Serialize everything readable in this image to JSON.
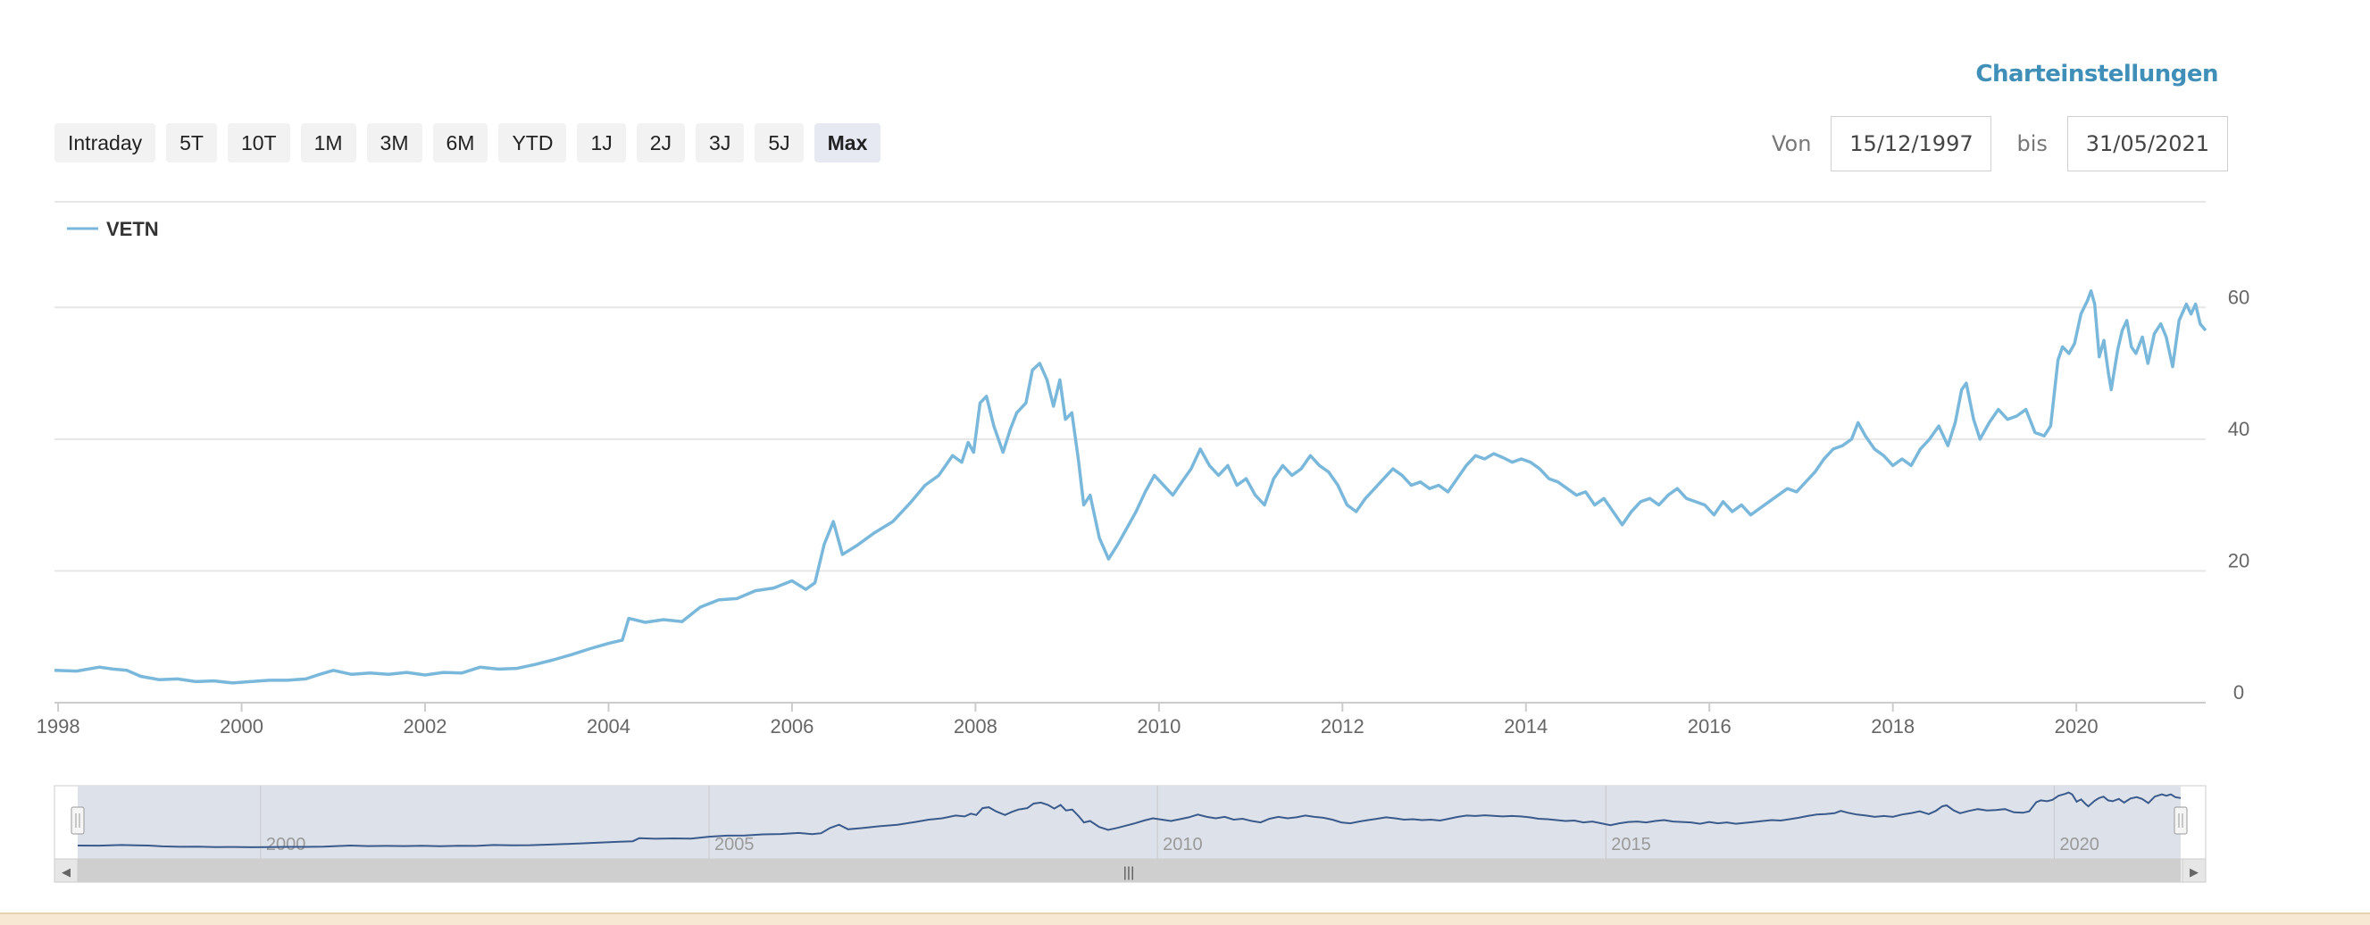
{
  "header": {
    "settings_label": "Charteinstellungen"
  },
  "range_buttons": [
    "Intraday",
    "5T",
    "10T",
    "1M",
    "3M",
    "6M",
    "YTD",
    "1J",
    "2J",
    "3J",
    "5J",
    "Max"
  ],
  "active_range": "Max",
  "date_range": {
    "from_label": "Von",
    "from_value": "15/12/1997",
    "to_label": "bis",
    "to_value": "31/05/2021"
  },
  "colors": {
    "series": "#7ab8db",
    "navigator_line": "#3a5a8c",
    "navigator_mask": "#dde2ea",
    "accent_link": "#3f8fb8"
  },
  "navigator": {
    "tick_labels": [
      "2000",
      "2005",
      "2010",
      "2015",
      "2020"
    ],
    "scrollbar_grip": "|||",
    "left_arrow": "◀",
    "right_arrow": "▶"
  },
  "chart_data": {
    "type": "line",
    "legend": {
      "name": "VETN",
      "position": "top-left"
    },
    "grid": true,
    "xlim": [
      1997.96,
      2021.41
    ],
    "ylim": [
      0,
      60
    ],
    "y_ticks": [
      0,
      20,
      40,
      60
    ],
    "x_ticks": [
      1998,
      2000,
      2002,
      2004,
      2006,
      2008,
      2010,
      2012,
      2014,
      2016,
      2018,
      2020
    ],
    "series": [
      {
        "name": "VETN",
        "points": [
          [
            1997.96,
            4.9
          ],
          [
            1998.2,
            4.8
          ],
          [
            1998.45,
            5.4
          ],
          [
            1998.6,
            5.1
          ],
          [
            1998.75,
            4.9
          ],
          [
            1998.9,
            4.0
          ],
          [
            1999.1,
            3.5
          ],
          [
            1999.3,
            3.6
          ],
          [
            1999.5,
            3.2
          ],
          [
            1999.7,
            3.3
          ],
          [
            1999.9,
            3.0
          ],
          [
            2000.1,
            3.2
          ],
          [
            2000.3,
            3.4
          ],
          [
            2000.5,
            3.4
          ],
          [
            2000.7,
            3.6
          ],
          [
            2000.85,
            4.3
          ],
          [
            2001.0,
            4.9
          ],
          [
            2001.2,
            4.3
          ],
          [
            2001.4,
            4.5
          ],
          [
            2001.6,
            4.3
          ],
          [
            2001.8,
            4.6
          ],
          [
            2002.0,
            4.2
          ],
          [
            2002.2,
            4.6
          ],
          [
            2002.4,
            4.5
          ],
          [
            2002.6,
            5.4
          ],
          [
            2002.8,
            5.1
          ],
          [
            2003.0,
            5.2
          ],
          [
            2003.2,
            5.8
          ],
          [
            2003.4,
            6.5
          ],
          [
            2003.6,
            7.3
          ],
          [
            2003.8,
            8.2
          ],
          [
            2004.0,
            9.0
          ],
          [
            2004.15,
            9.5
          ],
          [
            2004.22,
            12.8
          ],
          [
            2004.4,
            12.2
          ],
          [
            2004.6,
            12.6
          ],
          [
            2004.8,
            12.3
          ],
          [
            2005.0,
            14.5
          ],
          [
            2005.2,
            15.6
          ],
          [
            2005.4,
            15.8
          ],
          [
            2005.6,
            17.0
          ],
          [
            2005.8,
            17.4
          ],
          [
            2006.0,
            18.5
          ],
          [
            2006.15,
            17.2
          ],
          [
            2006.25,
            18.2
          ],
          [
            2006.35,
            24.0
          ],
          [
            2006.45,
            27.5
          ],
          [
            2006.55,
            22.5
          ],
          [
            2006.7,
            23.8
          ],
          [
            2006.9,
            25.8
          ],
          [
            2007.1,
            27.5
          ],
          [
            2007.3,
            30.5
          ],
          [
            2007.45,
            33.0
          ],
          [
            2007.6,
            34.5
          ],
          [
            2007.75,
            37.5
          ],
          [
            2007.85,
            36.5
          ],
          [
            2007.92,
            39.5
          ],
          [
            2007.98,
            38.0
          ],
          [
            2008.05,
            45.5
          ],
          [
            2008.12,
            46.5
          ],
          [
            2008.2,
            42.0
          ],
          [
            2008.3,
            38.0
          ],
          [
            2008.38,
            41.5
          ],
          [
            2008.45,
            44.0
          ],
          [
            2008.55,
            45.5
          ],
          [
            2008.62,
            50.5
          ],
          [
            2008.7,
            51.5
          ],
          [
            2008.78,
            49.0
          ],
          [
            2008.85,
            45.0
          ],
          [
            2008.92,
            49.0
          ],
          [
            2008.98,
            43.0
          ],
          [
            2009.05,
            44.0
          ],
          [
            2009.12,
            37.0
          ],
          [
            2009.18,
            30.0
          ],
          [
            2009.25,
            31.5
          ],
          [
            2009.35,
            25.0
          ],
          [
            2009.45,
            21.8
          ],
          [
            2009.55,
            24.0
          ],
          [
            2009.65,
            26.5
          ],
          [
            2009.75,
            29.0
          ],
          [
            2009.85,
            32.0
          ],
          [
            2009.95,
            34.5
          ],
          [
            2010.05,
            33.0
          ],
          [
            2010.15,
            31.5
          ],
          [
            2010.25,
            33.5
          ],
          [
            2010.35,
            35.5
          ],
          [
            2010.45,
            38.5
          ],
          [
            2010.55,
            36.0
          ],
          [
            2010.65,
            34.5
          ],
          [
            2010.75,
            36.0
          ],
          [
            2010.85,
            33.0
          ],
          [
            2010.95,
            34.0
          ],
          [
            2011.05,
            31.5
          ],
          [
            2011.15,
            30.0
          ],
          [
            2011.25,
            34.0
          ],
          [
            2011.35,
            36.0
          ],
          [
            2011.45,
            34.5
          ],
          [
            2011.55,
            35.5
          ],
          [
            2011.65,
            37.5
          ],
          [
            2011.75,
            36.0
          ],
          [
            2011.85,
            35.0
          ],
          [
            2011.95,
            33.0
          ],
          [
            2012.05,
            30.0
          ],
          [
            2012.15,
            29.0
          ],
          [
            2012.25,
            31.0
          ],
          [
            2012.35,
            32.5
          ],
          [
            2012.45,
            34.0
          ],
          [
            2012.55,
            35.5
          ],
          [
            2012.65,
            34.5
          ],
          [
            2012.75,
            33.0
          ],
          [
            2012.85,
            33.5
          ],
          [
            2012.95,
            32.5
          ],
          [
            2013.05,
            33.0
          ],
          [
            2013.15,
            32.0
          ],
          [
            2013.25,
            34.0
          ],
          [
            2013.35,
            36.0
          ],
          [
            2013.45,
            37.5
          ],
          [
            2013.55,
            37.0
          ],
          [
            2013.65,
            37.8
          ],
          [
            2013.75,
            37.2
          ],
          [
            2013.85,
            36.5
          ],
          [
            2013.95,
            37.0
          ],
          [
            2014.05,
            36.5
          ],
          [
            2014.15,
            35.5
          ],
          [
            2014.25,
            34.0
          ],
          [
            2014.35,
            33.5
          ],
          [
            2014.45,
            32.5
          ],
          [
            2014.55,
            31.5
          ],
          [
            2014.65,
            32.0
          ],
          [
            2014.75,
            30.0
          ],
          [
            2014.85,
            31.0
          ],
          [
            2014.95,
            29.0
          ],
          [
            2015.05,
            27.0
          ],
          [
            2015.15,
            29.0
          ],
          [
            2015.25,
            30.5
          ],
          [
            2015.35,
            31.0
          ],
          [
            2015.45,
            30.0
          ],
          [
            2015.55,
            31.5
          ],
          [
            2015.65,
            32.5
          ],
          [
            2015.75,
            31.0
          ],
          [
            2015.85,
            30.5
          ],
          [
            2015.95,
            30.0
          ],
          [
            2016.05,
            28.5
          ],
          [
            2016.15,
            30.5
          ],
          [
            2016.25,
            29.0
          ],
          [
            2016.35,
            30.0
          ],
          [
            2016.45,
            28.5
          ],
          [
            2016.55,
            29.5
          ],
          [
            2016.65,
            30.5
          ],
          [
            2016.75,
            31.5
          ],
          [
            2016.85,
            32.5
          ],
          [
            2016.95,
            32.0
          ],
          [
            2017.05,
            33.5
          ],
          [
            2017.15,
            35.0
          ],
          [
            2017.25,
            37.0
          ],
          [
            2017.35,
            38.5
          ],
          [
            2017.45,
            39.0
          ],
          [
            2017.55,
            40.0
          ],
          [
            2017.62,
            42.5
          ],
          [
            2017.7,
            40.5
          ],
          [
            2017.8,
            38.5
          ],
          [
            2017.9,
            37.5
          ],
          [
            2018.0,
            36.0
          ],
          [
            2018.1,
            37.0
          ],
          [
            2018.2,
            36.0
          ],
          [
            2018.3,
            38.5
          ],
          [
            2018.4,
            40.0
          ],
          [
            2018.5,
            42.0
          ],
          [
            2018.6,
            39.0
          ],
          [
            2018.68,
            42.5
          ],
          [
            2018.75,
            47.5
          ],
          [
            2018.8,
            48.5
          ],
          [
            2018.88,
            43.0
          ],
          [
            2018.95,
            40.0
          ],
          [
            2019.05,
            42.5
          ],
          [
            2019.15,
            44.5
          ],
          [
            2019.25,
            43.0
          ],
          [
            2019.35,
            43.5
          ],
          [
            2019.45,
            44.5
          ],
          [
            2019.55,
            41.0
          ],
          [
            2019.65,
            40.5
          ],
          [
            2019.72,
            42.0
          ],
          [
            2019.8,
            52.0
          ],
          [
            2019.85,
            54.0
          ],
          [
            2019.92,
            53.0
          ],
          [
            2019.98,
            54.5
          ],
          [
            2020.05,
            59.0
          ],
          [
            2020.12,
            61.0
          ],
          [
            2020.16,
            62.5
          ],
          [
            2020.2,
            60.5
          ],
          [
            2020.25,
            52.5
          ],
          [
            2020.3,
            55.0
          ],
          [
            2020.35,
            50.0
          ],
          [
            2020.38,
            47.5
          ],
          [
            2020.45,
            53.5
          ],
          [
            2020.5,
            56.5
          ],
          [
            2020.55,
            58.0
          ],
          [
            2020.6,
            54.0
          ],
          [
            2020.65,
            53.0
          ],
          [
            2020.72,
            55.5
          ],
          [
            2020.78,
            51.5
          ],
          [
            2020.85,
            56.0
          ],
          [
            2020.92,
            57.5
          ],
          [
            2020.98,
            55.5
          ],
          [
            2021.05,
            51.0
          ],
          [
            2021.12,
            58.0
          ],
          [
            2021.2,
            60.5
          ],
          [
            2021.25,
            59.0
          ],
          [
            2021.3,
            60.5
          ],
          [
            2021.35,
            57.5
          ],
          [
            2021.41,
            56.5
          ]
        ]
      }
    ]
  }
}
